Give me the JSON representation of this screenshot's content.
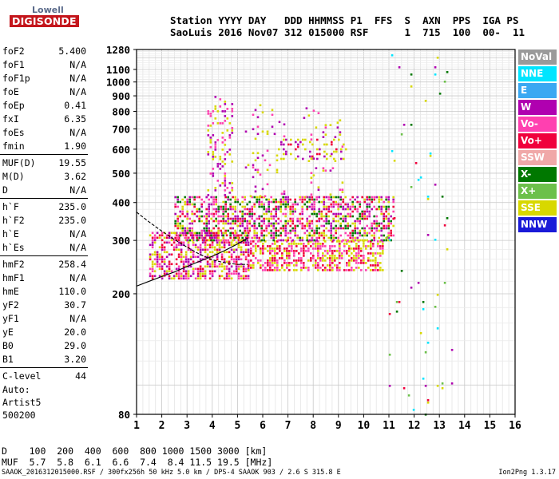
{
  "logo": {
    "line1": "Lowell",
    "line2": "DIGISONDE"
  },
  "header": {
    "line1": "Station YYYY DAY   DDD HHMMSS P1  FFS  S  AXN  PPS  IGA PS",
    "line2": "SaoLuis 2016 Nov07 312 015000 RSF      1  715  100  00-  11"
  },
  "parameters": [
    {
      "name": "foF2",
      "value": "5.400"
    },
    {
      "name": "foF1",
      "value": "N/A"
    },
    {
      "name": "foF1p",
      "value": "N/A"
    },
    {
      "name": "foE",
      "value": "N/A"
    },
    {
      "name": "foEp",
      "value": "0.41"
    },
    {
      "name": "fxI",
      "value": "6.35"
    },
    {
      "name": "foEs",
      "value": "N/A"
    },
    {
      "name": "fmin",
      "value": "1.90"
    },
    {
      "sep": true
    },
    {
      "name": "MUF(D)",
      "value": "19.55"
    },
    {
      "name": "M(D)",
      "value": "3.62"
    },
    {
      "name": "D",
      "value": "N/A"
    },
    {
      "sep": true
    },
    {
      "name": "h`F",
      "value": "235.0"
    },
    {
      "name": "h`F2",
      "value": "235.0"
    },
    {
      "name": "h`E",
      "value": "N/A"
    },
    {
      "name": "h`Es",
      "value": "N/A"
    },
    {
      "sep": true
    },
    {
      "name": "hmF2",
      "value": "258.4"
    },
    {
      "name": "hmF1",
      "value": "N/A"
    },
    {
      "name": "hmE",
      "value": "110.0"
    },
    {
      "name": "yF2",
      "value": "30.7"
    },
    {
      "name": "yF1",
      "value": "N/A"
    },
    {
      "name": "yE",
      "value": "20.0"
    },
    {
      "name": "B0",
      "value": "29.0"
    },
    {
      "name": "B1",
      "value": "3.20"
    },
    {
      "sep": true
    },
    {
      "name": "C-level",
      "value": "44"
    }
  ],
  "auto": {
    "line1": "Auto:",
    "line2": "Artist5",
    "line3": "500200"
  },
  "muf_table": {
    "d_line": "D    100  200  400  600  800 1000 1500 3000 [km]",
    "muf_line": "MUF  5.7  5.8  6.1  6.6  7.4  8.4 11.5 19.5 [MHz]"
  },
  "footer": {
    "text": "SAAOK_2016312015000.RSF / 300fx256h 50 kHz 5.0 km / DPS-4 SAAOK 903 / 2.6 S 315.8 E",
    "version": "Ion2Png 1.3.17"
  },
  "legend": [
    {
      "label": "NoVal",
      "color": "#9a9a9a"
    },
    {
      "label": "NNE",
      "color": "#00e5ff"
    },
    {
      "label": "E",
      "color": "#3aa8f2"
    },
    {
      "label": "W",
      "color": "#b000b0"
    },
    {
      "label": "Vo-",
      "color": "#ff40b0"
    },
    {
      "label": "Vo+",
      "color": "#f0003c"
    },
    {
      "label": "SSW",
      "color": "#f0a8a8"
    },
    {
      "label": "X-",
      "color": "#007800"
    },
    {
      "label": "X+",
      "color": "#6cc04a"
    },
    {
      "label": "SSE",
      "color": "#d8d800"
    },
    {
      "label": "NNW",
      "color": "#1a1ad8"
    }
  ],
  "chart_data": {
    "type": "scatter",
    "xlabel": "",
    "ylabel": "",
    "xlim": [
      1,
      16
    ],
    "ylim": [
      80,
      1280
    ],
    "y_scale": "log",
    "x_ticks": [
      1,
      2,
      3,
      4,
      5,
      6,
      7,
      8,
      9,
      10,
      11,
      12,
      13,
      14,
      15,
      16
    ],
    "y_ticks": [
      80,
      200,
      300,
      400,
      500,
      600,
      700,
      800,
      900,
      1000,
      1100,
      1280
    ],
    "grid": true,
    "legend_position": "right",
    "profile_curves": [
      {
        "name": "",
        "x": [
          1.0,
          1.5,
          2.0,
          2.5,
          3.0,
          3.5,
          4.0,
          4.5,
          5.0,
          5.4
        ],
        "y": [
          212,
          220,
          228,
          236,
          246,
          256,
          266,
          278,
          292,
          305
        ]
      },
      {
        "name": "",
        "x": [
          1.0,
          1.5,
          2.0,
          2.5,
          3.0,
          3.5,
          4.0,
          4.5,
          5.0,
          5.4
        ],
        "y": [
          372,
          345,
          322,
          302,
          285,
          270,
          259,
          253,
          250,
          250
        ]
      }
    ],
    "echo_clusters": [
      {
        "x_range": [
          1.5,
          5.4
        ],
        "y_range": [
          225,
          320
        ],
        "colors": [
          "#f0003c",
          "#ff40b0",
          "#d8d800",
          "#b000b0"
        ],
        "density": "high"
      },
      {
        "x_range": [
          5.4,
          10.8
        ],
        "y_range": [
          240,
          300
        ],
        "colors": [
          "#f0003c",
          "#ff40b0",
          "#d8d800"
        ],
        "density": "high"
      },
      {
        "x_range": [
          2.5,
          11.2
        ],
        "y_range": [
          300,
          420
        ],
        "colors": [
          "#f0003c",
          "#d8d800",
          "#b000b0",
          "#ff40b0",
          "#007800"
        ],
        "density": "high"
      },
      {
        "x_range": [
          3.8,
          4.8
        ],
        "y_range": [
          420,
          900
        ],
        "colors": [
          "#b000b0",
          "#ff40b0",
          "#d8d800"
        ],
        "density": "medium"
      },
      {
        "x_range": [
          5.2,
          7.0
        ],
        "y_range": [
          420,
          860
        ],
        "colors": [
          "#b000b0",
          "#ff40b0",
          "#d8d800"
        ],
        "density": "low"
      },
      {
        "x_range": [
          6.6,
          9.3
        ],
        "y_range": [
          560,
          650
        ],
        "colors": [
          "#d8d800",
          "#b000b0",
          "#f0003c"
        ],
        "density": "medium"
      },
      {
        "x_range": [
          7.6,
          9.2
        ],
        "y_range": [
          420,
          840
        ],
        "colors": [
          "#b000b0",
          "#ff40b0",
          "#d8d800"
        ],
        "density": "low"
      },
      {
        "x_range": [
          10.9,
          13.5
        ],
        "y_range": [
          80,
          1280
        ],
        "colors": [
          "#007800",
          "#6cc04a",
          "#00e5ff",
          "#b000b0",
          "#d8d800",
          "#f0003c"
        ],
        "density": "sparse"
      }
    ]
  }
}
